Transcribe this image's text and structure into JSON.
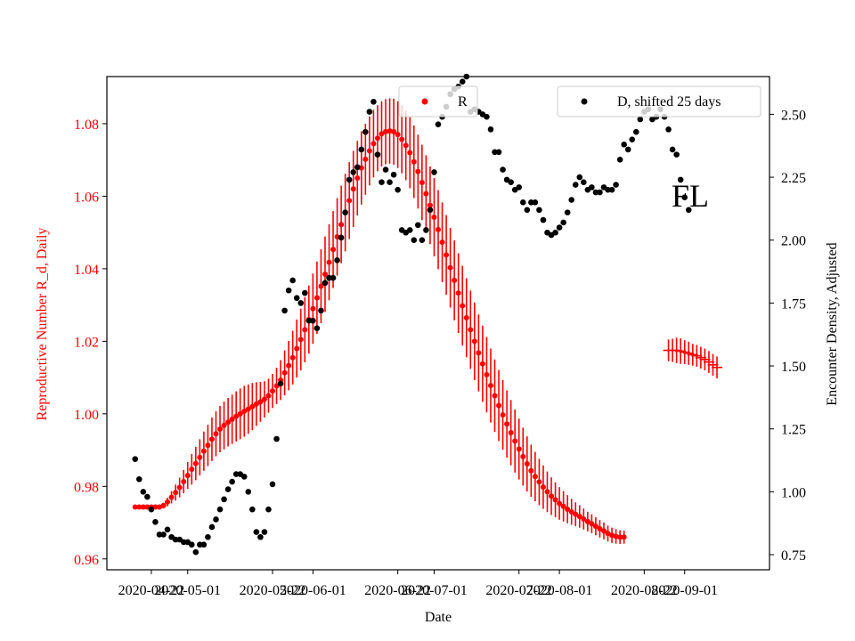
{
  "chart_data": {
    "type": "scatter",
    "xlabel": "Date",
    "annotation": "FL",
    "x_ticks": [
      "2020-04-22",
      "2020-05-01",
      "2020-05-22",
      "2020-06-01",
      "2020-06-22",
      "2020-07-01",
      "2020-07-22",
      "2020-08-01",
      "2020-08-22",
      "2020-09-01"
    ],
    "y_left": {
      "label": "Reproductive Number R_d, Daily",
      "color": "#ff0000",
      "range": [
        0.957,
        1.093
      ],
      "ticks": [
        "0.96",
        "0.98",
        "1.00",
        "1.02",
        "1.04",
        "1.06",
        "1.08"
      ]
    },
    "y_right": {
      "label": "Encounter Density, Adjusted",
      "color": "#000000",
      "range": [
        0.69,
        2.65
      ],
      "ticks": [
        "0.75",
        "1.00",
        "1.25",
        "1.50",
        "1.75",
        "2.00",
        "2.25",
        "2.50"
      ]
    },
    "x_range": [
      "2020-04-11",
      "2020-09-22"
    ],
    "legend": [
      {
        "label": "R",
        "color": "#ff0000",
        "placement": "top-center"
      },
      {
        "label": "D, shifted 25 days",
        "color": "#000000",
        "placement": "top-right"
      }
    ],
    "series_R": {
      "name": "R",
      "axis": "left",
      "color": "#ff0000",
      "start_date": "2020-04-18",
      "values": [
        0.9743,
        0.9743,
        0.9743,
        0.9743,
        0.9743,
        0.9743,
        0.9743,
        0.9747,
        0.9757,
        0.977,
        0.9783,
        0.9797,
        0.9813,
        0.983,
        0.9847,
        0.9863,
        0.988,
        0.9897,
        0.9913,
        0.993,
        0.9945,
        0.9958,
        0.9968,
        0.9977,
        0.9985,
        0.9993,
        1.0,
        1.0007,
        1.0013,
        1.002,
        1.0027,
        1.0033,
        1.004,
        1.005,
        1.0063,
        1.0077,
        1.0093,
        1.0113,
        1.0133,
        1.0155,
        1.018,
        1.0205,
        1.0232,
        1.026,
        1.029,
        1.032,
        1.0352,
        1.0385,
        1.0418,
        1.0453,
        1.0488,
        1.0522,
        1.0555,
        1.0588,
        1.062,
        1.065,
        1.0678,
        1.0702,
        1.0725,
        1.0745,
        1.076,
        1.0772,
        1.0778,
        1.078,
        1.0778,
        1.077,
        1.0757,
        1.074,
        1.072,
        1.0695,
        1.0668,
        1.0638,
        1.0607,
        1.0575,
        1.0542,
        1.0508,
        1.0473,
        1.0438,
        1.0403,
        1.0368,
        1.0333,
        1.0298,
        1.0265,
        1.0232,
        1.02,
        1.0168,
        1.0138,
        1.0108,
        1.0078,
        1.005,
        1.0023,
        0.9997,
        0.9972,
        0.9948,
        0.9925,
        0.9903,
        0.9882,
        0.9862,
        0.9843,
        0.9827,
        0.9812,
        0.9798,
        0.9785,
        0.9773,
        0.9763,
        0.9753,
        0.9745,
        0.9737,
        0.973,
        0.9723,
        0.9717,
        0.971,
        0.9703,
        0.9697,
        0.969,
        0.9683,
        0.9677,
        0.967,
        0.9665,
        0.9662,
        0.966,
        0.966
      ],
      "errors": [
        0.0005,
        0.0005,
        0.0005,
        0.0005,
        0.0005,
        0.0005,
        0.0005,
        0.0008,
        0.0012,
        0.0017,
        0.0022,
        0.0027,
        0.0032,
        0.0037,
        0.0042,
        0.0046,
        0.005,
        0.0054,
        0.0057,
        0.006,
        0.0062,
        0.0064,
        0.0066,
        0.0067,
        0.0068,
        0.0069,
        0.007,
        0.007,
        0.0068,
        0.0065,
        0.006,
        0.0055,
        0.005,
        0.0047,
        0.0047,
        0.005,
        0.0055,
        0.0062,
        0.0068,
        0.0074,
        0.008,
        0.0085,
        0.009,
        0.0094,
        0.0097,
        0.01,
        0.0102,
        0.0104,
        0.0105,
        0.0106,
        0.0107,
        0.0107,
        0.0107,
        0.0106,
        0.0105,
        0.0103,
        0.0101,
        0.0098,
        0.0095,
        0.0093,
        0.0091,
        0.009,
        0.009,
        0.009,
        0.0091,
        0.0092,
        0.0094,
        0.0096,
        0.0098,
        0.01,
        0.0102,
        0.0104,
        0.0106,
        0.0107,
        0.0108,
        0.0109,
        0.011,
        0.011,
        0.011,
        0.011,
        0.011,
        0.011,
        0.0109,
        0.0108,
        0.0107,
        0.0106,
        0.0105,
        0.0104,
        0.0102,
        0.01,
        0.0098,
        0.0096,
        0.0093,
        0.009,
        0.0087,
        0.0084,
        0.008,
        0.0076,
        0.0072,
        0.0068,
        0.0064,
        0.006,
        0.0056,
        0.0052,
        0.0048,
        0.0045,
        0.0042,
        0.0039,
        0.0036,
        0.0033,
        0.0031,
        0.0029,
        0.0027,
        0.0026,
        0.0025,
        0.0024,
        0.0023,
        0.0022,
        0.0021,
        0.002,
        0.0019,
        0.0018
      ]
    },
    "series_R_tail": {
      "axis": "left",
      "color": "#ff0000",
      "start_date": "2020-08-28",
      "values": [
        1.0175,
        1.0175,
        1.0175,
        1.0173,
        1.017,
        1.0167,
        1.0163,
        1.016,
        1.0155,
        1.015,
        1.0143,
        1.0135,
        1.0128
      ],
      "errors": [
        0.003,
        0.0032,
        0.0035,
        0.0035,
        0.0033,
        0.0032,
        0.003,
        0.003,
        0.003,
        0.003,
        0.003,
        0.003,
        0.003
      ]
    },
    "series_D": {
      "name": "D, shifted 25 days",
      "axis": "right",
      "color": "#000000",
      "start_date": "2020-04-18",
      "values": [
        1.13,
        1.05,
        1.0,
        0.98,
        0.93,
        0.88,
        0.83,
        0.83,
        0.85,
        0.82,
        0.81,
        0.81,
        0.8,
        0.8,
        0.79,
        0.76,
        0.79,
        0.79,
        0.82,
        0.86,
        0.89,
        0.93,
        0.97,
        1.01,
        1.04,
        1.07,
        1.07,
        1.06,
        1.0,
        0.93,
        0.84,
        0.82,
        0.84,
        0.93,
        1.03,
        1.21,
        1.43,
        1.72,
        1.8,
        1.84,
        1.77,
        1.75,
        1.79,
        1.68,
        1.68,
        1.65,
        1.72,
        1.83,
        1.85,
        1.85,
        1.92,
        2.01,
        2.11,
        2.24,
        2.27,
        2.29,
        2.36,
        2.43,
        2.51,
        2.55,
        2.34,
        2.23,
        2.28,
        2.23,
        2.26,
        2.2,
        2.04,
        2.03,
        2.04,
        2.0,
        2.06,
        2.0,
        2.04,
        2.12,
        2.27,
        2.46,
        2.49,
        2.53,
        2.58,
        2.6,
        2.61,
        2.63,
        2.65,
        2.51,
        2.52,
        2.51,
        2.5,
        2.49,
        2.44,
        2.35,
        2.35,
        2.28,
        2.24,
        2.23,
        2.2,
        2.21,
        2.15,
        2.12,
        2.15,
        2.15,
        2.12,
        2.08,
        2.03,
        2.02,
        2.03,
        2.05,
        2.07,
        2.11,
        2.16,
        2.22,
        2.25,
        2.23,
        2.2,
        2.21,
        2.19,
        2.19,
        2.21,
        2.2,
        2.2,
        2.22,
        2.32,
        2.38,
        2.36,
        2.4,
        2.43,
        2.48,
        2.51,
        2.52,
        2.48,
        2.49,
        2.52,
        2.49,
        2.44,
        2.36,
        2.34,
        2.24,
        2.17,
        2.12
      ],
      "start_date_note_hidden": ""
    }
  }
}
